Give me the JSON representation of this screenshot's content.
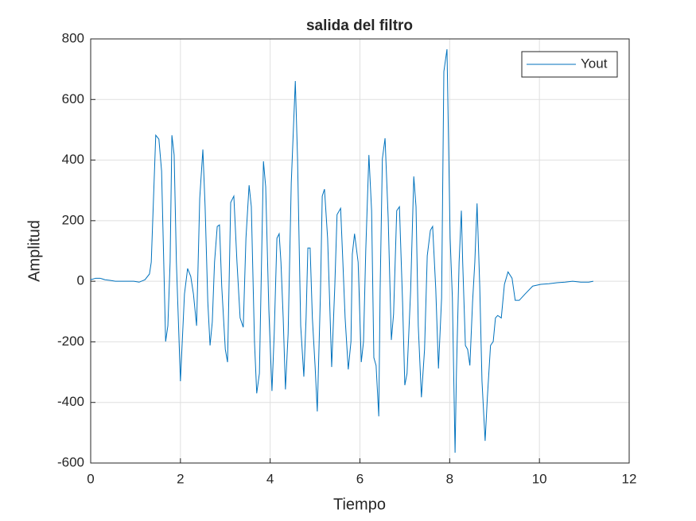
{
  "chart_data": {
    "type": "line",
    "title": "salida del filtro",
    "xlabel": "Tiempo",
    "ylabel": "Amplitud",
    "x": [
      0,
      0.11,
      0.21,
      0.32,
      0.43,
      0.55,
      0.67,
      0.82,
      0.96,
      1.08,
      1.21,
      1.31,
      1.35,
      1.45,
      1.52,
      1.58,
      1.67,
      1.72,
      1.77,
      1.81,
      1.86,
      1.91,
      2.0,
      2.09,
      2.16,
      2.23,
      2.29,
      2.36,
      2.43,
      2.5,
      2.55,
      2.61,
      2.66,
      2.71,
      2.76,
      2.82,
      2.87,
      2.92,
      3.0,
      3.05,
      3.12,
      3.19,
      3.26,
      3.33,
      3.4,
      3.46,
      3.53,
      3.58,
      3.65,
      3.7,
      3.76,
      3.85,
      3.9,
      3.97,
      4.04,
      4.09,
      4.15,
      4.2,
      4.24,
      4.29,
      4.34,
      4.4,
      4.47,
      4.56,
      4.61,
      4.68,
      4.75,
      4.8,
      4.84,
      4.89,
      4.94,
      5.0,
      5.05,
      5.12,
      5.16,
      5.21,
      5.28,
      5.32,
      5.37,
      5.44,
      5.49,
      5.57,
      5.62,
      5.67,
      5.74,
      5.8,
      5.83,
      5.88,
      5.96,
      6.03,
      6.08,
      6.13,
      6.2,
      6.26,
      6.31,
      6.36,
      6.42,
      6.45,
      6.5,
      6.56,
      6.63,
      6.7,
      6.75,
      6.82,
      6.88,
      6.95,
      7.0,
      7.05,
      7.13,
      7.2,
      7.25,
      7.3,
      7.37,
      7.44,
      7.5,
      7.57,
      7.62,
      7.69,
      7.75,
      7.82,
      7.87,
      7.94,
      8.01,
      8.06,
      8.12,
      8.15,
      8.21,
      8.26,
      8.29,
      8.35,
      8.4,
      8.45,
      8.51,
      8.56,
      8.61,
      8.67,
      8.72,
      8.79,
      8.84,
      8.91,
      8.97,
      9.02,
      9.07,
      9.15,
      9.22,
      9.3,
      9.39,
      9.46,
      9.55,
      9.68,
      9.85,
      10.03,
      10.21,
      10.39,
      10.57,
      10.74,
      10.92,
      11.1,
      11.2
    ],
    "series": [
      {
        "name": "Yout",
        "color": "#0072bd",
        "values": [
          5,
          10,
          10,
          5,
          3,
          0,
          0,
          0,
          0,
          -3,
          5,
          24,
          63,
          482,
          469,
          364,
          -199,
          -147,
          63,
          482,
          417,
          63,
          -330,
          -42,
          42,
          16,
          -42,
          -147,
          273,
          435,
          246,
          -68,
          -212,
          -134,
          63,
          181,
          186,
          -16,
          -225,
          -267,
          260,
          281,
          63,
          -121,
          -152,
          142,
          317,
          246,
          -199,
          -370,
          -304,
          396,
          312,
          -94,
          -362,
          -173,
          142,
          157,
          63,
          -121,
          -357,
          -173,
          325,
          661,
          404,
          -147,
          -315,
          -121,
          110,
          110,
          -121,
          -278,
          -430,
          -42,
          281,
          304,
          142,
          -42,
          -283,
          -16,
          220,
          241,
          63,
          -121,
          -291,
          -199,
          89,
          157,
          63,
          -267,
          -199,
          102,
          417,
          233,
          -252,
          -278,
          -446,
          -29,
          404,
          472,
          207,
          -194,
          -108,
          233,
          246,
          -68,
          -343,
          -304,
          -31,
          346,
          246,
          -147,
          -383,
          -225,
          84,
          168,
          181,
          -26,
          -288,
          -55,
          692,
          766,
          142,
          -55,
          -566,
          -304,
          63,
          233,
          63,
          -212,
          -225,
          -278,
          -68,
          63,
          257,
          -16,
          -330,
          -527,
          -383,
          -212,
          -199,
          -121,
          -113,
          -121,
          -10,
          31,
          10,
          -63,
          -63,
          -42,
          -16,
          -10,
          -8,
          -5,
          -3,
          0,
          -3,
          -3,
          0
        ]
      }
    ],
    "xlim": [
      0,
      12
    ],
    "xticks": [
      0,
      2,
      4,
      6,
      8,
      10,
      12
    ],
    "ylim": [
      -600,
      800
    ],
    "yticks": [
      -600,
      -400,
      -200,
      0,
      200,
      400,
      600,
      800
    ],
    "grid": true,
    "legend": "upper-right"
  }
}
